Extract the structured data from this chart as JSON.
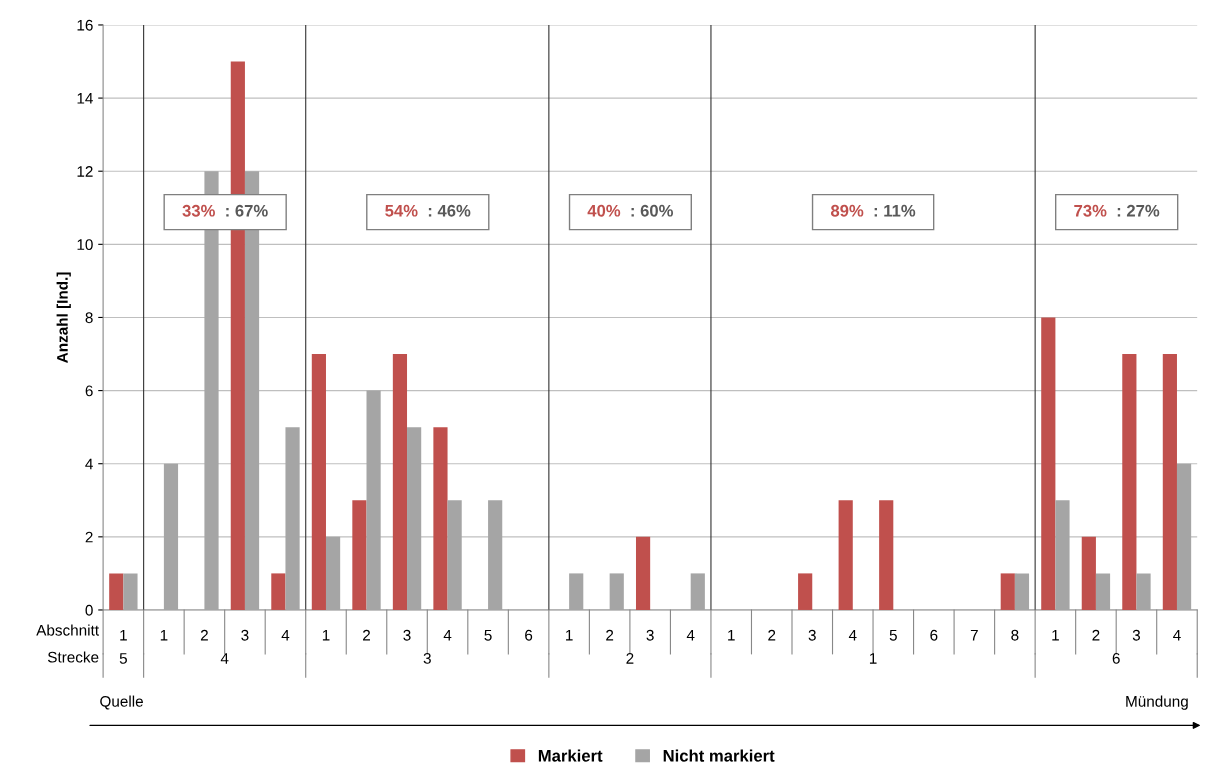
{
  "chart_data": {
    "type": "bar",
    "ylabel": "Anzahl [Ind.]",
    "categories": [
      "1",
      "1",
      "2",
      "3",
      "4",
      "1",
      "2",
      "3",
      "4",
      "5",
      "6",
      "1",
      "2",
      "3",
      "4",
      "1",
      "2",
      "3",
      "4",
      "5",
      "6",
      "7",
      "8",
      "1",
      "2",
      "3",
      "4"
    ],
    "series": [
      {
        "name": "Markiert",
        "color": "#c0504d",
        "values": [
          1,
          0,
          0,
          15,
          1,
          7,
          3,
          7,
          5,
          0,
          0,
          0,
          0,
          2,
          0,
          0,
          0,
          1,
          3,
          3,
          0,
          0,
          1,
          8,
          2,
          7,
          7
        ]
      },
      {
        "name": "Nicht markiert",
        "color": "#a5a5a5",
        "values": [
          1,
          4,
          12,
          12,
          5,
          2,
          6,
          5,
          3,
          3,
          0,
          1,
          1,
          0,
          1,
          0,
          0,
          0,
          0,
          0,
          0,
          0,
          1,
          3,
          1,
          1,
          4
        ]
      }
    ],
    "ylim": [
      0,
      16
    ],
    "yticks": [
      0,
      2,
      4,
      6,
      8,
      10,
      12,
      14,
      16
    ],
    "grid": "y",
    "legend": "bottom",
    "annotations": [
      "Abschnitt",
      "Strecke",
      "5",
      "4",
      "3",
      "2",
      "1",
      "6",
      "33% : 67%",
      "54% : 46%",
      "40% : 60%",
      "89% : 11%",
      "73% : 27%",
      "Quelle",
      "Mündung"
    ]
  }
}
